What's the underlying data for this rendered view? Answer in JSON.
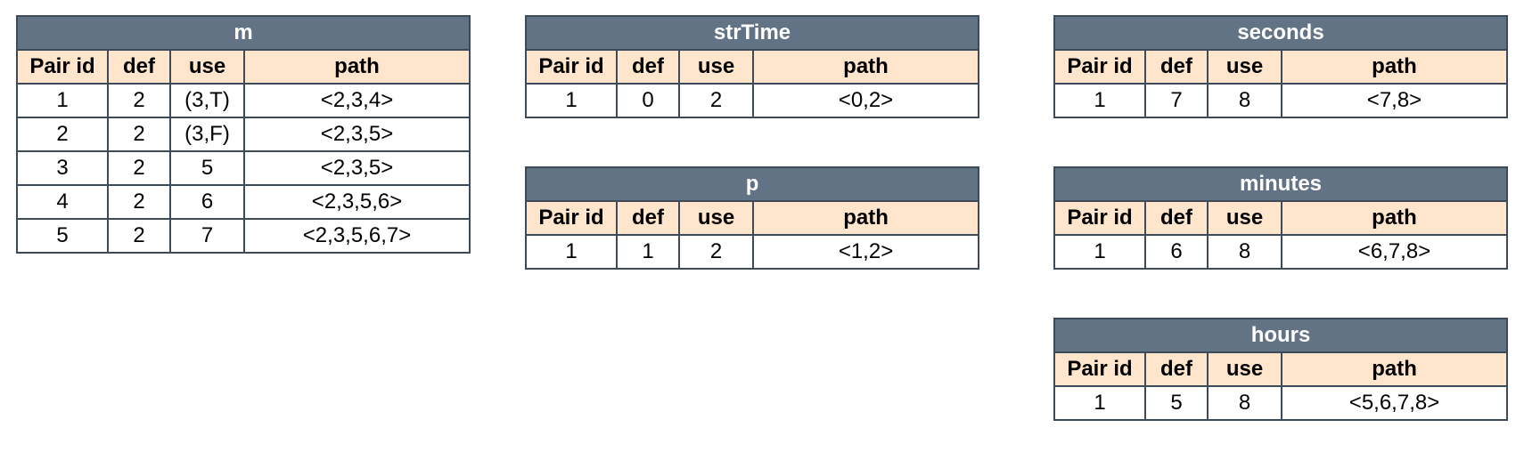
{
  "tables": {
    "m": {
      "title": "m",
      "headers": [
        "Pair id",
        "def",
        "use",
        "path"
      ],
      "rows": [
        [
          "1",
          "2",
          "(3,T)",
          "<2,3,4>"
        ],
        [
          "2",
          "2",
          "(3,F)",
          "<2,3,5>"
        ],
        [
          "3",
          "2",
          "5",
          "<2,3,5>"
        ],
        [
          "4",
          "2",
          "6",
          "<2,3,5,6>"
        ],
        [
          "5",
          "2",
          "7",
          "<2,3,5,6,7>"
        ]
      ]
    },
    "strTime": {
      "title": "strTime",
      "headers": [
        "Pair id",
        "def",
        "use",
        "path"
      ],
      "rows": [
        [
          "1",
          "0",
          "2",
          "<0,2>"
        ]
      ]
    },
    "seconds": {
      "title": "seconds",
      "headers": [
        "Pair id",
        "def",
        "use",
        "path"
      ],
      "rows": [
        [
          "1",
          "7",
          "8",
          "<7,8>"
        ]
      ]
    },
    "p": {
      "title": "p",
      "headers": [
        "Pair id",
        "def",
        "use",
        "path"
      ],
      "rows": [
        [
          "1",
          "1",
          "2",
          "<1,2>"
        ]
      ]
    },
    "minutes": {
      "title": "minutes",
      "headers": [
        "Pair id",
        "def",
        "use",
        "path"
      ],
      "rows": [
        [
          "1",
          "6",
          "8",
          "<6,7,8>"
        ]
      ]
    },
    "hours": {
      "title": "hours",
      "headers": [
        "Pair id",
        "def",
        "use",
        "path"
      ],
      "rows": [
        [
          "1",
          "5",
          "8",
          "<5,6,7,8>"
        ]
      ]
    }
  },
  "colors": {
    "title_background": "#627386",
    "header_background": "#ffe5cc",
    "border": "#3d4a5a"
  }
}
